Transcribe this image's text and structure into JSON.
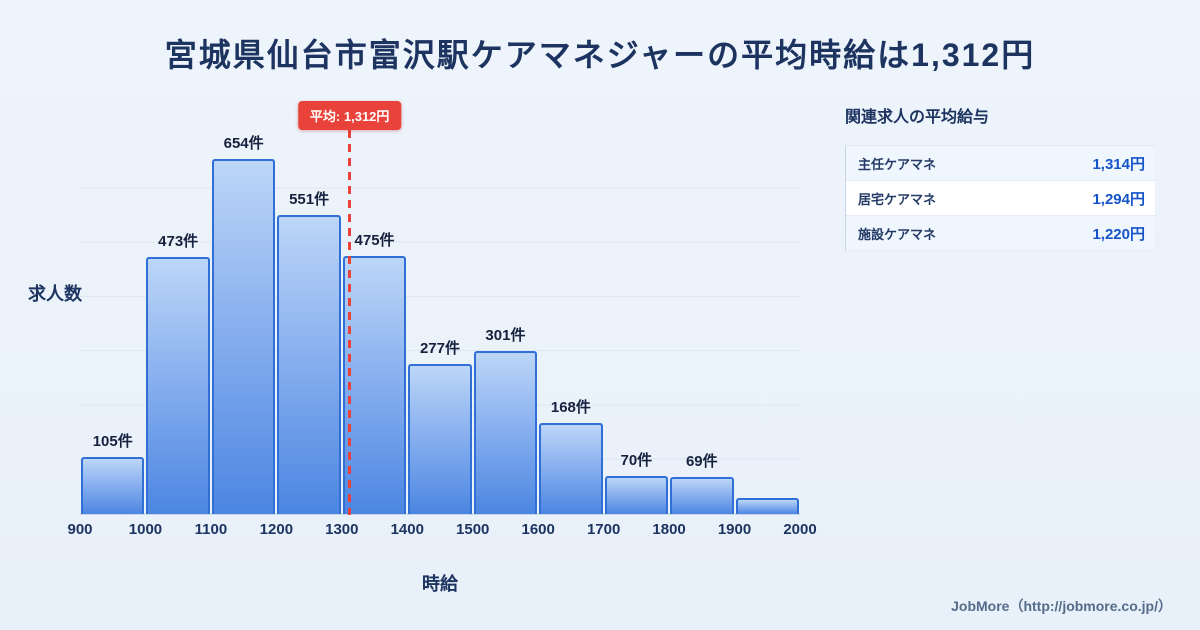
{
  "page": {
    "title": "宮城県仙台市富沢駅ケアマネジャーの平均時給は1,312円",
    "footer": "JobMore（http://jobmore.co.jp/）"
  },
  "chart_data": {
    "type": "bar",
    "title": "宮城県仙台市富沢駅ケアマネジャーの平均時給は1,312円",
    "xlabel": "時給",
    "ylabel": "求人数",
    "x_ticks": [
      "900",
      "1000",
      "1100",
      "1200",
      "1300",
      "1400",
      "1500",
      "1600",
      "1700",
      "1800",
      "1900",
      "2000"
    ],
    "bin_start": 900,
    "bin_width": 100,
    "values": [
      105,
      473,
      654,
      551,
      475,
      277,
      301,
      168,
      70,
      69,
      30
    ],
    "labels": [
      "105件",
      "473件",
      "654件",
      "551件",
      "475件",
      "277件",
      "301件",
      "168件",
      "70件",
      "69件",
      ""
    ],
    "average": 1312,
    "average_label": "平均: 1,312円",
    "ylim": [
      0,
      700
    ],
    "grid": true,
    "legend": "none",
    "colors": {
      "bar_top": "#bcd6f7",
      "bar_bottom": "#4c86e2",
      "bar_border": "#2f6fd6",
      "average_line": "#e8423a",
      "title_text": "#1d3461",
      "value_text": "#1453c8"
    }
  },
  "side_panel": {
    "title": "関連求人の平均給与",
    "rows": [
      {
        "label": "主任ケアマネ",
        "value": "1,314円"
      },
      {
        "label": "居宅ケアマネ",
        "value": "1,294円"
      },
      {
        "label": "施設ケアマネ",
        "value": "1,220円"
      }
    ]
  }
}
